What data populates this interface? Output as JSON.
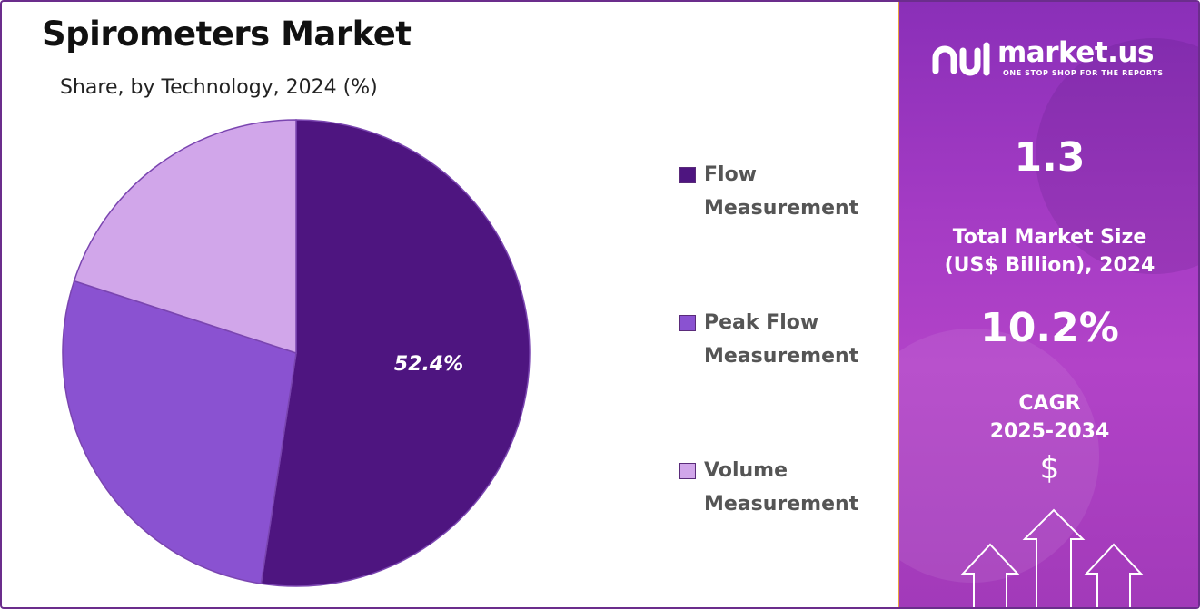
{
  "chart_data": {
    "type": "pie",
    "title": "Spirometers Market",
    "subtitle": "Share, by Technology, 2024 (%)",
    "slices": [
      {
        "name": "Flow Measurement",
        "value": 52.4,
        "label": "52.4%",
        "color": "#4e1580"
      },
      {
        "name": "Peak Flow Measurement",
        "value": 27.6,
        "label": "",
        "color": "#8a52d1"
      },
      {
        "name": "Volume Measurement",
        "value": 20.0,
        "label": "",
        "color": "#d1a6ea"
      }
    ],
    "legend_position": "right"
  },
  "legend": [
    {
      "line1": "Flow",
      "line2": "Measurement",
      "color": "#4e1580"
    },
    {
      "line1": "Peak Flow",
      "line2": "Measurement",
      "color": "#8a52d1"
    },
    {
      "line1": "Volume",
      "line2": "Measurement",
      "color": "#d1a6ea"
    }
  ],
  "sidebar": {
    "brand_name": "market.us",
    "brand_tagline": "ONE STOP SHOP FOR THE REPORTS",
    "market_size_value": "1.3",
    "market_size_label_line1": "Total Market Size",
    "market_size_label_line2": "(US$ Billion), 2024",
    "cagr_value": "10.2%",
    "cagr_label_line1": "CAGR",
    "cagr_label_line2": "2025-2034",
    "dollar_symbol": "$"
  },
  "colors": {
    "frame": "#6b2d8c",
    "sidebar_accent": "#e9a23b"
  }
}
